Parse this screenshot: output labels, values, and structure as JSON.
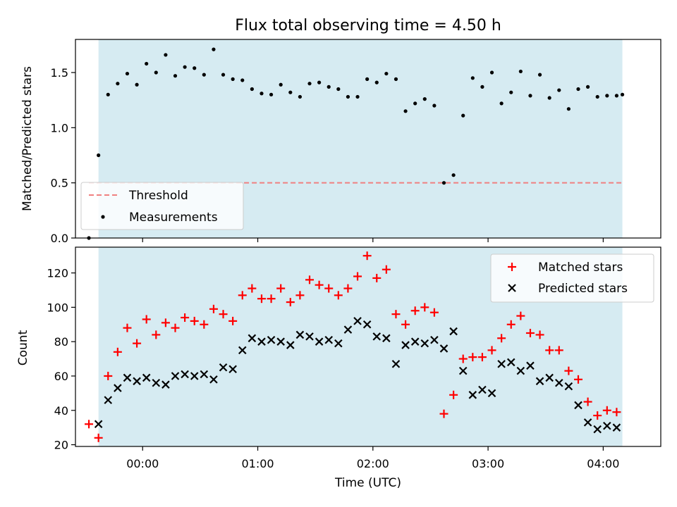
{
  "title": "Flux total observing time = 4.50 h",
  "colors": {
    "span": "#add8e6",
    "threshold": "#f08080",
    "measurement": "#000000",
    "matched": "#ff0000",
    "predicted": "#000000"
  },
  "chart_data": [
    {
      "type": "scatter",
      "ylabel": "Matched/Predicted stars",
      "xlim": [
        -35,
        270
      ],
      "ylim": [
        0,
        1.8
      ],
      "x_unit": "minutes from 00:00 UTC",
      "yticks": [
        "0.0",
        "0.5",
        "1.0",
        "1.5"
      ],
      "ytick_values": [
        0,
        0.5,
        1.0,
        1.5
      ],
      "xtick_values": [
        0,
        60,
        120,
        180,
        240
      ],
      "shaded_span": [
        -23,
        250
      ],
      "threshold": {
        "name": "Threshold",
        "value": 0.5,
        "x_range": [
          -28,
          250
        ]
      },
      "legend": {
        "placement": "lower-left",
        "entries": [
          "Threshold",
          "Measurements"
        ]
      },
      "series": [
        {
          "name": "Measurements",
          "x": [
            -28,
            -23,
            -18,
            -13,
            -8,
            -3,
            2,
            7,
            12,
            17,
            22,
            27,
            32,
            37,
            42,
            47,
            52,
            57,
            62,
            67,
            72,
            77,
            82,
            87,
            92,
            97,
            102,
            107,
            112,
            117,
            122,
            127,
            132,
            137,
            142,
            147,
            152,
            157,
            162,
            167,
            172,
            177,
            182,
            187,
            192,
            197,
            202,
            207,
            212,
            217,
            222,
            227,
            232,
            237,
            242,
            247,
            250
          ],
          "y": [
            0.0,
            0.75,
            1.3,
            1.4,
            1.49,
            1.39,
            1.58,
            1.5,
            1.66,
            1.47,
            1.55,
            1.54,
            1.48,
            1.71,
            1.48,
            1.44,
            1.43,
            1.35,
            1.31,
            1.3,
            1.39,
            1.32,
            1.28,
            1.4,
            1.41,
            1.37,
            1.35,
            1.28,
            1.28,
            1.44,
            1.41,
            1.49,
            1.44,
            1.15,
            1.22,
            1.26,
            1.2,
            0.5,
            0.57,
            1.11,
            1.45,
            1.37,
            1.5,
            1.22,
            1.32,
            1.51,
            1.29,
            1.48,
            1.27,
            1.34,
            1.17,
            1.35,
            1.37,
            1.28,
            1.29,
            1.29,
            1.3
          ]
        }
      ]
    },
    {
      "type": "scatter",
      "ylabel": "Count",
      "xlabel": "Time (UTC)",
      "xlim": [
        -35,
        270
      ],
      "ylim": [
        19,
        135
      ],
      "x_unit": "minutes from 00:00 UTC",
      "yticks": [
        "20",
        "40",
        "60",
        "80",
        "100",
        "120"
      ],
      "ytick_values": [
        20,
        40,
        60,
        80,
        100,
        120
      ],
      "xticks": [
        "00:00",
        "01:00",
        "02:00",
        "03:00",
        "04:00"
      ],
      "xtick_values": [
        0,
        60,
        120,
        180,
        240
      ],
      "shaded_span": [
        -23,
        250
      ],
      "legend": {
        "placement": "top-right",
        "entries": [
          "Matched stars",
          "Predicted stars"
        ]
      },
      "series": [
        {
          "name": "Matched stars",
          "marker": "+",
          "x": [
            -28,
            -23,
            -18,
            -13,
            -8,
            -3,
            2,
            7,
            12,
            17,
            22,
            27,
            32,
            37,
            42,
            47,
            52,
            57,
            62,
            67,
            72,
            77,
            82,
            87,
            92,
            97,
            102,
            107,
            112,
            117,
            122,
            127,
            132,
            137,
            142,
            147,
            152,
            157,
            162,
            167,
            172,
            177,
            182,
            187,
            192,
            197,
            202,
            207,
            212,
            217,
            222,
            227,
            232,
            237,
            242,
            247
          ],
          "y": [
            32,
            24,
            60,
            74,
            88,
            79,
            93,
            84,
            91,
            88,
            94,
            92,
            90,
            99,
            96,
            92,
            107,
            111,
            105,
            105,
            111,
            103,
            107,
            116,
            113,
            111,
            107,
            111,
            118,
            130,
            117,
            122,
            96,
            90,
            98,
            100,
            97,
            38,
            49,
            70,
            71,
            71,
            75,
            82,
            90,
            95,
            85,
            84,
            75,
            75,
            63,
            58,
            45,
            37,
            40,
            39
          ]
        },
        {
          "name": "Predicted stars",
          "marker": "x",
          "x": [
            -23,
            -18,
            -13,
            -8,
            -3,
            2,
            7,
            12,
            17,
            22,
            27,
            32,
            37,
            42,
            47,
            52,
            57,
            62,
            67,
            72,
            77,
            82,
            87,
            92,
            97,
            102,
            107,
            112,
            117,
            122,
            127,
            132,
            137,
            142,
            147,
            152,
            157,
            162,
            167,
            172,
            177,
            182,
            187,
            192,
            197,
            202,
            207,
            212,
            217,
            222,
            227,
            232,
            237,
            242,
            247
          ],
          "y": [
            32,
            46,
            53,
            59,
            57,
            59,
            56,
            55,
            60,
            61,
            60,
            61,
            58,
            65,
            64,
            75,
            82,
            80,
            81,
            80,
            78,
            84,
            83,
            80,
            81,
            79,
            87,
            92,
            90,
            83,
            82,
            67,
            78,
            80,
            79,
            81,
            76,
            86,
            63,
            49,
            52,
            50,
            67,
            68,
            63,
            66,
            57,
            59,
            56,
            54,
            43,
            33,
            29,
            31,
            30
          ]
        }
      ]
    }
  ]
}
